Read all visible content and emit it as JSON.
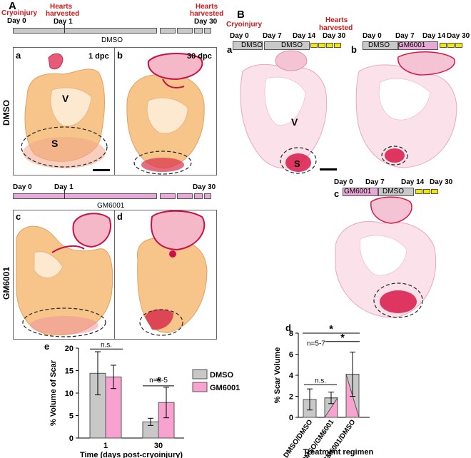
{
  "panel_a": {
    "letter": "A",
    "cryoinjury": [
      "Cryoinjury",
      "Day 0"
    ],
    "hearts_harvested_1": [
      "Hearts",
      "harvested",
      "Day 1"
    ],
    "hearts_harvested_30": [
      "Hearts",
      "harvested",
      "Day 30"
    ],
    "dmso_bar_label": "DMSO",
    "row_label_dmso": "DMSO",
    "sub_a": "a",
    "sub_b": "b",
    "dpc1": "1 dpc",
    "dpc30": "30 dpc",
    "v_label": "V",
    "s_label": "S",
    "gm_day0": "Day 0",
    "gm_day1": "Day 1",
    "gm_day30": "Day 30",
    "gm_bar_label": "GM6001",
    "row_label_gm": "GM6001",
    "sub_c": "c",
    "sub_d": "d"
  },
  "panel_b": {
    "letter": "B",
    "cryoinjury": "Cryoinjury",
    "hearts_harvested": [
      "Hearts",
      "harvested"
    ],
    "a": {
      "letter": "a",
      "days": [
        "Day 0",
        "Day 7",
        "Day 14",
        "Day 30"
      ],
      "treat": [
        "DMSO",
        "DMSO"
      ]
    },
    "b": {
      "letter": "b",
      "days": [
        "Day 0",
        "Day 7",
        "Day 14",
        "Day 30"
      ],
      "treat": [
        "DMSO",
        "GM6001"
      ]
    },
    "c": {
      "letter": "c",
      "days": [
        "Day 0",
        "Day 7",
        "Day 14",
        "Day 30"
      ],
      "treat": [
        "GM6001",
        "DMSO"
      ]
    },
    "v_label": "V",
    "s_label": "S"
  },
  "chart_e": {
    "letter": "e",
    "chart_data": {
      "type": "bar",
      "categories": [
        "1",
        "30"
      ],
      "series": [
        {
          "name": "DMSO",
          "values": [
            14.4,
            3.6
          ],
          "errors": [
            4.8,
            0.8
          ],
          "color": "#c8c8c8"
        },
        {
          "name": "GM6001",
          "values": [
            13.6,
            7.9
          ],
          "errors": [
            2.6,
            3.4
          ],
          "color": "#f7a2cf"
        }
      ],
      "xlabel": "Time (days post-cryoinjury)",
      "ylabel": "% Volume of Scar",
      "ylim": [
        0,
        20
      ],
      "yticks": [
        "0",
        "5",
        "10",
        "15",
        "20"
      ],
      "annotations": [
        "n.s.",
        "n=3-5",
        "*"
      ],
      "legend_position": "right"
    }
  },
  "chart_d": {
    "letter": "d",
    "chart_data": {
      "type": "bar",
      "categories": [
        "DMSO/DMSO",
        "DMSO/GM6001",
        "GM6001/DMSO"
      ],
      "values": [
        1.7,
        1.85,
        4.1
      ],
      "errors": [
        1.0,
        0.55,
        2.1
      ],
      "xlabel": "Treatment regimen",
      "ylabel": "% Scar Volume",
      "ylim": [
        0,
        8
      ],
      "yticks": [
        "0",
        "2",
        "4",
        "6",
        "8"
      ],
      "annotations": [
        "n=5-7",
        "n.s.",
        "*",
        "*"
      ],
      "colors": {
        "dmso": "#c8c8c8",
        "gm": "#f7a2cf"
      }
    }
  }
}
